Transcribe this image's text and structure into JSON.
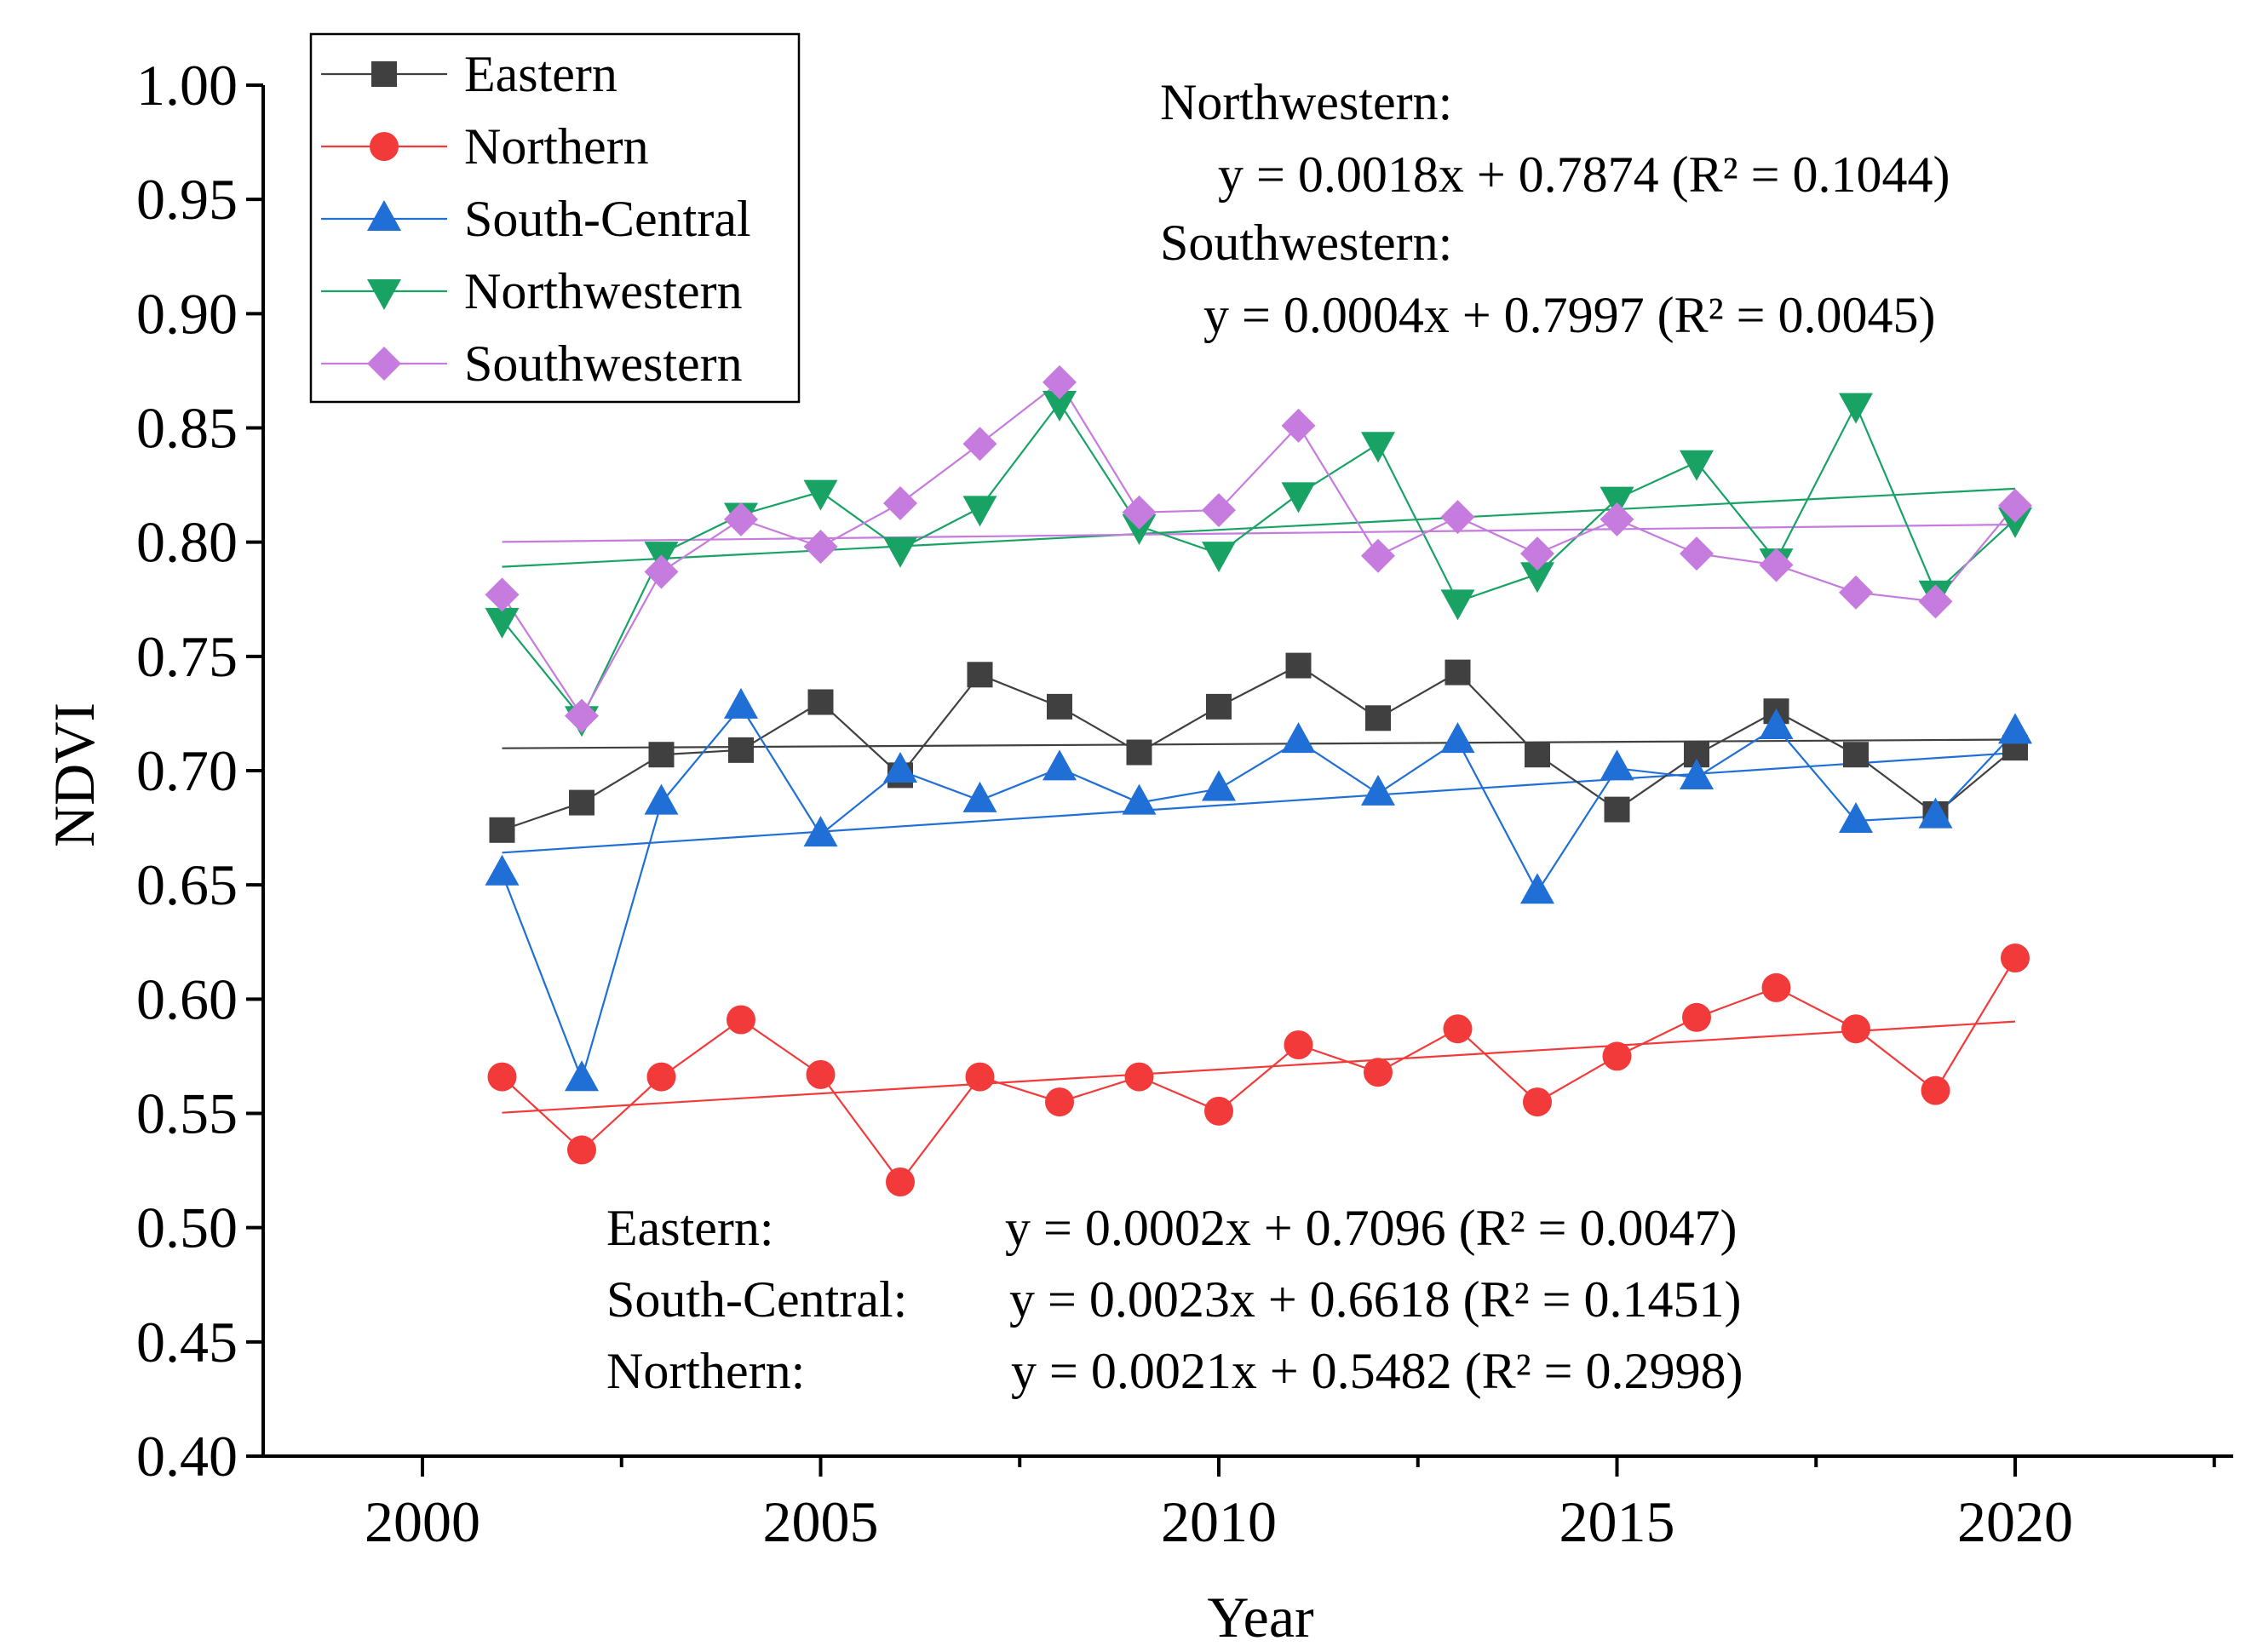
{
  "chart_data": {
    "type": "line",
    "title": "",
    "xlabel": "Year",
    "ylabel": "NDVI",
    "xlim": [
      1998,
      2022.5
    ],
    "ylim": [
      0.4,
      1.0
    ],
    "xticks": [
      2000,
      2005,
      2010,
      2015,
      2020
    ],
    "xtick_labels": [
      "2000",
      "2005",
      "2010",
      "2015",
      "2020"
    ],
    "yticks": [
      0.4,
      0.45,
      0.5,
      0.55,
      0.6,
      0.65,
      0.7,
      0.75,
      0.8,
      0.85,
      0.9,
      0.95,
      1.0
    ],
    "ytick_labels": [
      "0.40",
      "0.45",
      "0.50",
      "0.55",
      "0.60",
      "0.65",
      "0.70",
      "0.75",
      "0.80",
      "0.85",
      "0.90",
      "0.95",
      "1.00"
    ],
    "grid": false,
    "legend_position": "top-left",
    "x": [
      2001,
      2002,
      2003,
      2004,
      2005,
      2006,
      2007,
      2008,
      2009,
      2010,
      2011,
      2012,
      2013,
      2014,
      2015,
      2016,
      2017,
      2018,
      2019,
      2020
    ],
    "series": [
      {
        "name": "Eastern",
        "color": "#404040",
        "marker": "square",
        "values": [
          0.674,
          0.686,
          0.707,
          0.709,
          0.73,
          0.698,
          0.742,
          0.728,
          0.708,
          0.728,
          0.746,
          0.723,
          0.743,
          0.707,
          0.683,
          0.707,
          0.726,
          0.707,
          0.681,
          0.71
        ],
        "trend": {
          "slope": 0.0002,
          "intercept": 0.7096
        }
      },
      {
        "name": "Northern",
        "color": "#f23a3a",
        "marker": "circle",
        "values": [
          0.566,
          0.534,
          0.566,
          0.591,
          0.567,
          0.52,
          0.566,
          0.555,
          0.566,
          0.551,
          0.58,
          0.568,
          0.587,
          0.555,
          0.575,
          0.592,
          0.605,
          0.587,
          0.56,
          0.618
        ],
        "trend": {
          "slope": 0.0021,
          "intercept": 0.5482
        }
      },
      {
        "name": "South-Central",
        "color": "#1f6fd6",
        "marker": "triangle-up",
        "values": [
          0.655,
          0.565,
          0.686,
          0.728,
          0.672,
          0.7,
          0.687,
          0.701,
          0.686,
          0.692,
          0.713,
          0.69,
          0.713,
          0.647,
          0.701,
          0.697,
          0.719,
          0.678,
          0.68,
          0.717
        ],
        "trend": {
          "slope": 0.0023,
          "intercept": 0.6618
        }
      },
      {
        "name": "Northwestern",
        "color": "#18a364",
        "marker": "triangle-down",
        "values": [
          0.766,
          0.723,
          0.795,
          0.812,
          0.822,
          0.797,
          0.815,
          0.861,
          0.807,
          0.795,
          0.821,
          0.843,
          0.774,
          0.786,
          0.819,
          0.835,
          0.792,
          0.86,
          0.778,
          0.81
        ],
        "trend": {
          "slope": 0.0018,
          "intercept": 0.7874
        }
      },
      {
        "name": "Southwestern",
        "color": "#c67bde",
        "marker": "diamond",
        "values": [
          0.777,
          0.724,
          0.787,
          0.81,
          0.798,
          0.817,
          0.843,
          0.87,
          0.813,
          0.814,
          0.851,
          0.794,
          0.811,
          0.795,
          0.81,
          0.795,
          0.79,
          0.778,
          0.774,
          0.816
        ],
        "trend": {
          "slope": 0.0004,
          "intercept": 0.7997
        }
      }
    ],
    "annotations": {
      "nw_label": "Northwestern:",
      "nw_eq": "y = 0.0018x + 0.7874 (R² = 0.1044)",
      "sw_label": "Southwestern:",
      "sw_eq": "y = 0.0004x + 0.7997 (R² = 0.0045)",
      "e_label": "Eastern:",
      "e_eq": "y = 0.0002x + 0.7096 (R² = 0.0047)",
      "sc_label": "South-Central:",
      "sc_eq": "y = 0.0023x + 0.6618 (R² = 0.1451)",
      "n_label": "Northern:",
      "n_eq": "y = 0.0021x + 0.5482 (R² = 0.2998)"
    }
  }
}
